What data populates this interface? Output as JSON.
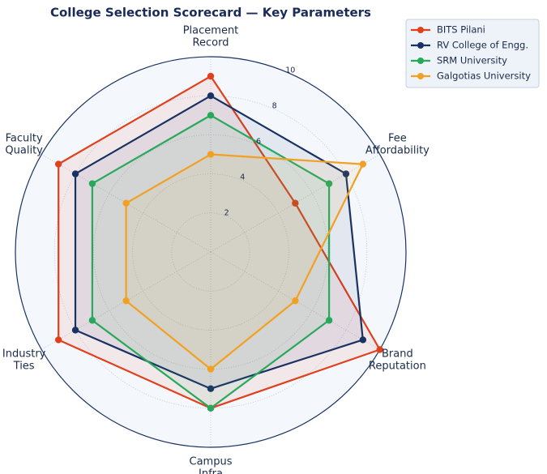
{
  "chart_data": {
    "type": "radar",
    "title": "College Selection Scorecard — Key Parameters",
    "categories": [
      "Placement\nRecord",
      "Fee\nAffordability",
      "Brand\nReputation",
      "Campus\nInfra",
      "Industry\nTies",
      "Faculty\nQuality"
    ],
    "ylim": [
      0,
      10
    ],
    "yticks": [
      2,
      4,
      6,
      8,
      10
    ],
    "grid": true,
    "legend": "upper right",
    "series": [
      {
        "name": "BITS Pilani",
        "color": "#e0401c",
        "values": [
          9,
          5,
          10,
          8,
          9,
          9
        ]
      },
      {
        "name": "RV College of Engg.",
        "color": "#1a3263",
        "values": [
          8,
          8,
          9,
          7,
          8,
          8
        ]
      },
      {
        "name": "SRM University",
        "color": "#27a85a",
        "values": [
          7,
          7,
          7,
          8,
          7,
          7
        ]
      },
      {
        "name": "Galgotias University",
        "color": "#f2a024",
        "values": [
          5,
          9,
          5,
          6,
          5,
          5
        ]
      }
    ]
  }
}
